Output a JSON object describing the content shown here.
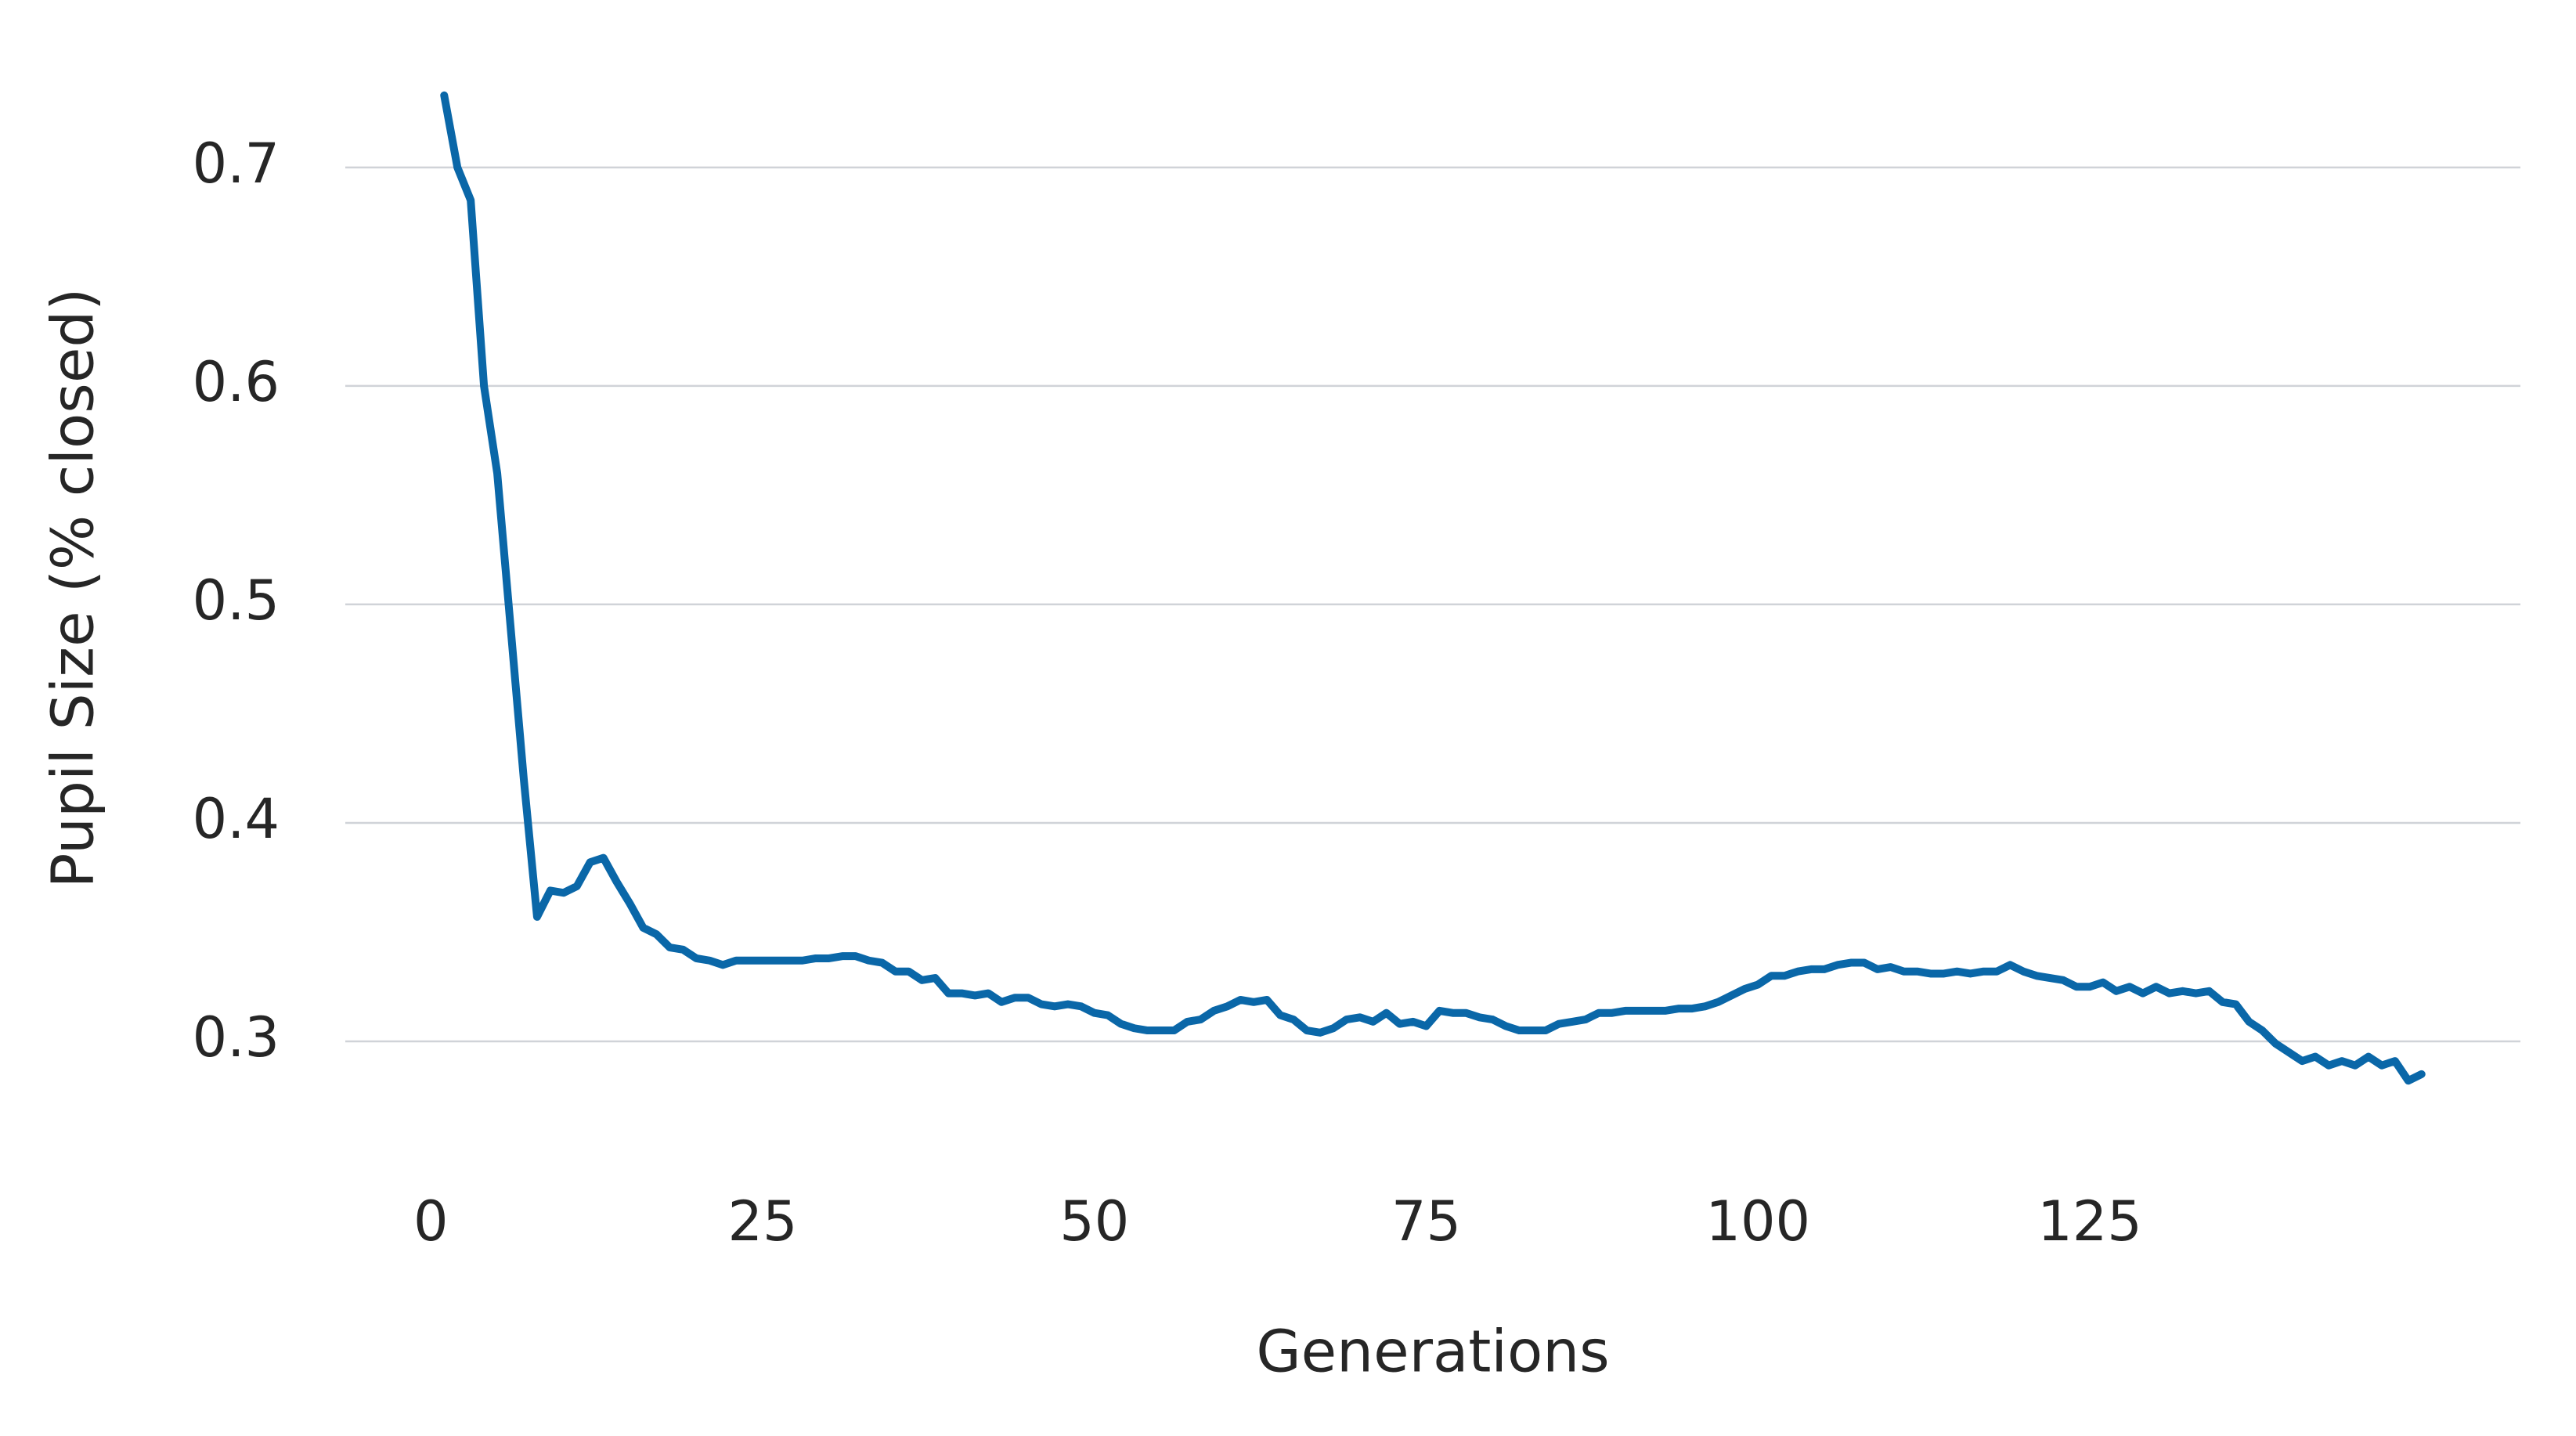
{
  "chart_data": {
    "type": "line",
    "x_label": "Generations",
    "y_label": "Pupil Size (% closed)",
    "x": [
      1,
      2,
      3,
      4,
      5,
      6,
      7,
      8,
      9,
      10,
      11,
      12,
      13,
      14,
      15,
      16,
      17,
      18,
      19,
      20,
      21,
      22,
      23,
      24,
      25,
      26,
      27,
      28,
      29,
      30,
      31,
      32,
      33,
      34,
      35,
      36,
      37,
      38,
      39,
      40,
      41,
      42,
      43,
      44,
      45,
      46,
      47,
      48,
      49,
      50,
      51,
      52,
      53,
      54,
      55,
      56,
      57,
      58,
      59,
      60,
      61,
      62,
      63,
      64,
      65,
      66,
      67,
      68,
      69,
      70,
      71,
      72,
      73,
      74,
      75,
      76,
      77,
      78,
      79,
      80,
      81,
      82,
      83,
      84,
      85,
      86,
      87,
      88,
      89,
      90,
      91,
      92,
      93,
      94,
      95,
      96,
      97,
      98,
      99,
      100,
      101,
      102,
      103,
      104,
      105,
      106,
      107,
      108,
      109,
      110,
      111,
      112,
      113,
      114,
      115,
      116,
      117,
      118,
      119,
      120,
      121,
      122,
      123,
      124,
      125,
      126,
      127,
      128,
      129,
      130,
      131,
      132,
      133,
      134,
      135,
      136,
      137,
      138,
      139,
      140,
      141,
      142,
      143,
      144,
      145,
      146,
      147,
      148,
      149,
      150
    ],
    "series": [
      {
        "name": "Pupil Size",
        "color": "#0a67a8",
        "values": [
          0.733,
          0.7,
          0.685,
          0.6,
          0.56,
          0.49,
          0.42,
          0.357,
          0.369,
          0.368,
          0.371,
          0.382,
          0.384,
          0.373,
          0.363,
          0.352,
          0.349,
          0.343,
          0.342,
          0.338,
          0.337,
          0.335,
          0.337,
          0.337,
          0.337,
          0.337,
          0.337,
          0.337,
          0.338,
          0.338,
          0.339,
          0.339,
          0.337,
          0.336,
          0.332,
          0.332,
          0.328,
          0.329,
          0.322,
          0.322,
          0.321,
          0.322,
          0.318,
          0.32,
          0.32,
          0.317,
          0.316,
          0.317,
          0.316,
          0.313,
          0.312,
          0.308,
          0.306,
          0.305,
          0.305,
          0.305,
          0.309,
          0.31,
          0.314,
          0.316,
          0.319,
          0.318,
          0.319,
          0.312,
          0.31,
          0.305,
          0.304,
          0.306,
          0.31,
          0.311,
          0.309,
          0.313,
          0.308,
          0.309,
          0.307,
          0.314,
          0.313,
          0.313,
          0.311,
          0.31,
          0.307,
          0.305,
          0.305,
          0.305,
          0.308,
          0.309,
          0.31,
          0.313,
          0.313,
          0.314,
          0.314,
          0.314,
          0.314,
          0.315,
          0.315,
          0.316,
          0.318,
          0.321,
          0.324,
          0.326,
          0.33,
          0.33,
          0.332,
          0.333,
          0.333,
          0.335,
          0.336,
          0.336,
          0.333,
          0.334,
          0.332,
          0.332,
          0.331,
          0.331,
          0.332,
          0.331,
          0.332,
          0.332,
          0.335,
          0.332,
          0.33,
          0.329,
          0.328,
          0.325,
          0.325,
          0.327,
          0.323,
          0.325,
          0.322,
          0.325,
          0.322,
          0.323,
          0.322,
          0.323,
          0.318,
          0.317,
          0.309,
          0.305,
          0.299,
          0.295,
          0.291,
          0.293,
          0.289,
          0.291,
          0.289,
          0.293,
          0.289,
          0.291,
          0.282,
          0.285
        ]
      }
    ],
    "xlim": [
      -6.45,
      157.45
    ],
    "ylim": [
      0.2595,
      0.7555
    ],
    "xticks": [
      0,
      25,
      50,
      75,
      100,
      125
    ],
    "yticks": [
      0.3,
      0.4,
      0.5,
      0.6,
      0.7
    ],
    "grid": "y"
  }
}
